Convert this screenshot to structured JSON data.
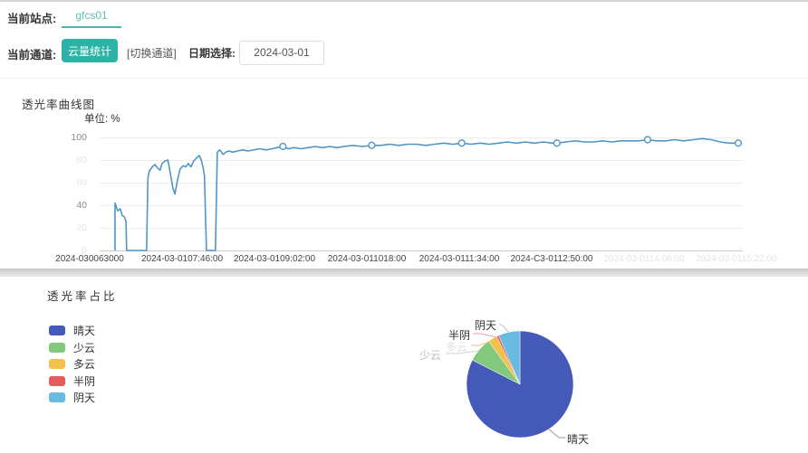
{
  "header": {
    "site_label": "当前站点:",
    "site_name": "gfcs01",
    "channel_label": "当前通道:",
    "channel_button": "云量统计",
    "switch_channel": "[切换通道]",
    "date_label": "日期选择:",
    "date_value": "2024-03-01"
  },
  "colors": {
    "teal": "#2db3a6",
    "teal_light": "#5fc0b7",
    "line_blue": "#4e96c6"
  },
  "chart_data": [
    {
      "type": "line",
      "title": "透光率曲线图",
      "unit_label": "单位: %",
      "ylabel": "%",
      "ylim": [
        0,
        100
      ],
      "grid": true,
      "line_color": "#4e96c6",
      "y_ticks": [
        {
          "label": "100",
          "faint": false
        },
        {
          "label": "80",
          "faint": true
        },
        {
          "label": "60",
          "faint": true
        },
        {
          "label": "40",
          "faint": false
        },
        {
          "label": "20",
          "faint": true
        },
        {
          "label": "0",
          "faint": true
        }
      ],
      "x_ticks": [
        {
          "label": "2024-030063000",
          "faint": false
        },
        {
          "label": "2024-03-0107:46:00",
          "faint": false
        },
        {
          "label": "2024-03-0109:02:00",
          "faint": false
        },
        {
          "label": "2024-03-011018:00",
          "faint": false
        },
        {
          "label": "2024-03-0111:34:00",
          "faint": false
        },
        {
          "label": "2024-C3-0112:50:00",
          "faint": false
        },
        {
          "label": "2024-03-0114:06:00",
          "faint": true
        },
        {
          "label": "2024-03-0115:22:00",
          "faint": true
        }
      ],
      "points": [
        [
          2.4,
          0
        ],
        [
          2.4,
          42
        ],
        [
          2.8,
          35
        ],
        [
          3.2,
          37
        ],
        [
          3.5,
          31
        ],
        [
          3.8,
          30
        ],
        [
          4.1,
          26
        ],
        [
          4.2,
          0
        ],
        [
          7.3,
          0
        ],
        [
          7.5,
          64
        ],
        [
          7.7,
          70
        ],
        [
          8.2,
          74
        ],
        [
          8.6,
          76
        ],
        [
          9.0,
          73
        ],
        [
          9.4,
          71
        ],
        [
          9.7,
          77
        ],
        [
          10.1,
          79
        ],
        [
          10.6,
          80
        ],
        [
          11.0,
          68
        ],
        [
          11.4,
          55
        ],
        [
          11.7,
          50
        ],
        [
          12.1,
          62
        ],
        [
          12.5,
          72
        ],
        [
          13.0,
          75
        ],
        [
          13.4,
          74
        ],
        [
          13.8,
          77
        ],
        [
          14.2,
          74
        ],
        [
          14.6,
          79
        ],
        [
          15.1,
          82
        ],
        [
          15.5,
          84
        ],
        [
          15.8,
          80
        ],
        [
          16.1,
          73
        ],
        [
          16.3,
          66
        ],
        [
          16.6,
          0
        ],
        [
          18.0,
          0
        ],
        [
          18.3,
          87
        ],
        [
          18.7,
          89
        ],
        [
          19.2,
          85
        ],
        [
          19.6,
          87
        ],
        [
          20.1,
          88
        ],
        [
          20.7,
          87
        ],
        [
          21.4,
          88
        ],
        [
          22.3,
          89
        ],
        [
          23.1,
          88
        ],
        [
          23.9,
          89
        ],
        [
          24.9,
          90
        ],
        [
          25.9,
          89
        ],
        [
          26.8,
          90
        ],
        [
          27.6,
          91
        ],
        [
          28.5,
          92
        ],
        [
          29.3,
          90
        ],
        [
          30.3,
          91
        ],
        [
          31.3,
          90
        ],
        [
          32.4,
          91
        ],
        [
          33.5,
          92
        ],
        [
          34.6,
          91
        ],
        [
          35.8,
          92
        ],
        [
          36.9,
          91
        ],
        [
          38.0,
          92
        ],
        [
          39.4,
          93
        ],
        [
          40.8,
          92
        ],
        [
          42.3,
          93
        ],
        [
          43.7,
          93
        ],
        [
          45.1,
          94
        ],
        [
          46.5,
          93
        ],
        [
          47.9,
          94
        ],
        [
          49.3,
          94
        ],
        [
          50.7,
          93
        ],
        [
          52.1,
          94
        ],
        [
          53.5,
          95
        ],
        [
          54.9,
          94
        ],
        [
          56.3,
          95
        ],
        [
          57.7,
          94
        ],
        [
          59.2,
          95
        ],
        [
          60.6,
          94
        ],
        [
          62.0,
          95
        ],
        [
          63.4,
          96
        ],
        [
          64.8,
          95
        ],
        [
          66.2,
          96
        ],
        [
          67.6,
          95
        ],
        [
          69.0,
          96
        ],
        [
          70.4,
          95
        ],
        [
          71.1,
          95
        ],
        [
          72.5,
          96
        ],
        [
          73.9,
          97
        ],
        [
          75.4,
          96
        ],
        [
          76.8,
          96
        ],
        [
          78.2,
          97
        ],
        [
          79.6,
          96
        ],
        [
          81.0,
          97
        ],
        [
          82.4,
          97
        ],
        [
          83.8,
          97
        ],
        [
          85.2,
          98
        ],
        [
          86.6,
          97
        ],
        [
          88.0,
          97
        ],
        [
          89.4,
          98
        ],
        [
          90.8,
          97
        ],
        [
          92.3,
          98
        ],
        [
          93.7,
          99
        ],
        [
          95.1,
          98
        ],
        [
          96.5,
          96
        ],
        [
          97.9,
          95
        ],
        [
          99.3,
          95
        ]
      ],
      "markers": [
        [
          28.5,
          92
        ],
        [
          42.3,
          93
        ],
        [
          56.3,
          95
        ],
        [
          71.1,
          95
        ],
        [
          85.2,
          98
        ],
        [
          99.3,
          95
        ]
      ]
    },
    {
      "type": "pie",
      "title": "透光率占比",
      "legend_position": "left",
      "slices": [
        {
          "name": "晴天",
          "value": 82.5,
          "color": "#4559b8"
        },
        {
          "name": "少云",
          "value": 7.5,
          "color": "#82c97d"
        },
        {
          "name": "多云",
          "value": 2.8,
          "color": "#f2c14d"
        },
        {
          "name": "半阴",
          "value": 0.7,
          "color": "#e45c5c"
        },
        {
          "name": "阴天",
          "value": 6.5,
          "color": "#69b9e0"
        }
      ]
    }
  ]
}
